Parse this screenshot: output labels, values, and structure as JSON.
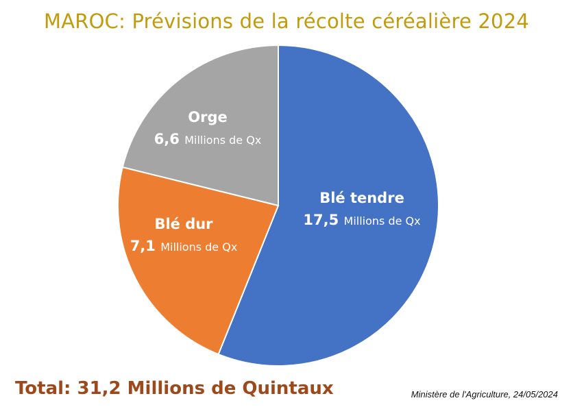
{
  "title": "MAROC: Prévisions de la récolte céréalière 2024",
  "total_text": "Total: 31,2 Millions de Quintaux",
  "source_text": "Ministère de l'Agriculture, 24/05/2024",
  "chart_data": {
    "type": "pie",
    "title": "MAROC: Prévisions de la récolte céréalière 2024",
    "unit": "Millions de Qx",
    "slices": [
      {
        "name": "Blé tendre",
        "value": 17.5,
        "value_label": "17,5",
        "color": "#4472c4"
      },
      {
        "name": "Blé dur",
        "value": 7.1,
        "value_label": "7,1",
        "color": "#ed7d31"
      },
      {
        "name": "Orge",
        "value": 6.6,
        "value_label": "6,6",
        "color": "#a5a5a5"
      }
    ]
  }
}
